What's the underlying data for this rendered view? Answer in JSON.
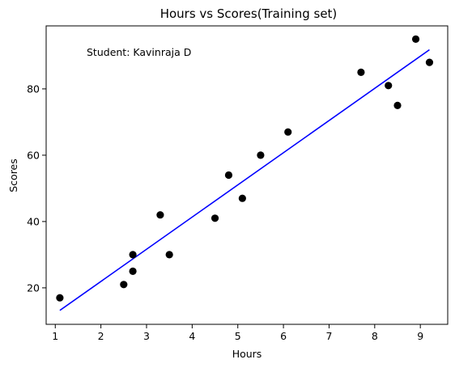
{
  "chart_data": {
    "type": "scatter",
    "title": "Hours vs Scores(Training set)",
    "xlabel": "Hours",
    "ylabel": "Scores",
    "xlim": [
      0.8,
      9.6
    ],
    "ylim": [
      9,
      99
    ],
    "xticks": [
      1,
      2,
      3,
      4,
      5,
      6,
      7,
      8,
      9
    ],
    "yticks": [
      20,
      40,
      60,
      80
    ],
    "grid": false,
    "annotation": "Student: Kavinraja D",
    "points": [
      {
        "x": 1.1,
        "y": 17
      },
      {
        "x": 2.5,
        "y": 21
      },
      {
        "x": 2.7,
        "y": 25
      },
      {
        "x": 2.7,
        "y": 30
      },
      {
        "x": 3.3,
        "y": 42
      },
      {
        "x": 3.5,
        "y": 30
      },
      {
        "x": 4.5,
        "y": 41
      },
      {
        "x": 4.8,
        "y": 54
      },
      {
        "x": 5.1,
        "y": 47
      },
      {
        "x": 5.5,
        "y": 60
      },
      {
        "x": 6.1,
        "y": 67
      },
      {
        "x": 7.7,
        "y": 85
      },
      {
        "x": 8.3,
        "y": 81
      },
      {
        "x": 8.5,
        "y": 75
      },
      {
        "x": 8.9,
        "y": 95
      },
      {
        "x": 9.2,
        "y": 88
      }
    ],
    "fit_line": {
      "x": [
        1.1,
        9.2
      ],
      "y": [
        13.2,
        91.8
      ]
    },
    "colors": {
      "points": "#000000",
      "line": "#0000ff"
    }
  }
}
